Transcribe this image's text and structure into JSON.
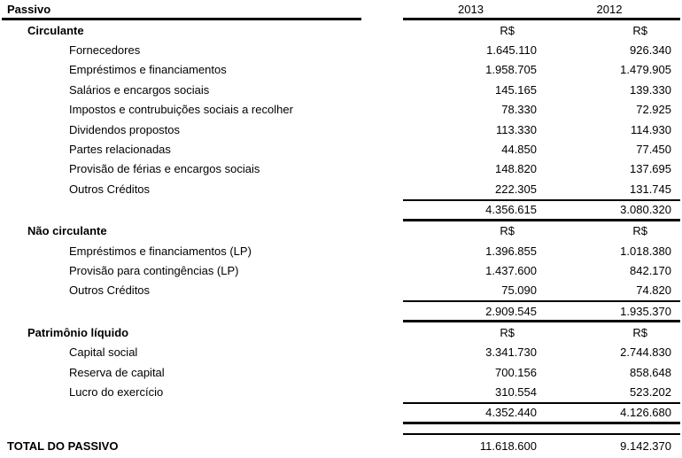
{
  "table": {
    "title": "Passivo",
    "col_headers": {
      "y2013": "2013",
      "y2012": "2012"
    },
    "currency_label": "R$",
    "sections": [
      {
        "name": "Circulante",
        "items": [
          {
            "label": "Fornecedores",
            "v2013": "1.645.110",
            "v2012": "926.340"
          },
          {
            "label": "Empréstimos e financiamentos",
            "v2013": "1.958.705",
            "v2012": "1.479.905"
          },
          {
            "label": "Salários e encargos sociais",
            "v2013": "145.165",
            "v2012": "139.330"
          },
          {
            "label": "Impostos e contrubuições sociais a recolher",
            "v2013": "78.330",
            "v2012": "72.925"
          },
          {
            "label": "Dividendos propostos",
            "v2013": "113.330",
            "v2012": "114.930"
          },
          {
            "label": "Partes relacionadas",
            "v2013": "44.850",
            "v2012": "77.450"
          },
          {
            "label": "Provisão de férias e encargos sociais",
            "v2013": "148.820",
            "v2012": "137.695"
          },
          {
            "label": "Outros Créditos",
            "v2013": "222.305",
            "v2012": "131.745"
          }
        ],
        "subtotal": {
          "v2013": "4.356.615",
          "v2012": "3.080.320"
        }
      },
      {
        "name": "Não circulante",
        "items": [
          {
            "label": "Empréstimos e financiamentos (LP)",
            "v2013": "1.396.855",
            "v2012": "1.018.380"
          },
          {
            "label": "Provisão para contingências (LP)",
            "v2013": "1.437.600",
            "v2012": "842.170"
          },
          {
            "label": "Outros Créditos",
            "v2013": "75.090",
            "v2012": "74.820"
          }
        ],
        "subtotal": {
          "v2013": "2.909.545",
          "v2012": "1.935.370"
        }
      },
      {
        "name": "Patrimônio líquido",
        "items": [
          {
            "label": "Capital social",
            "v2013": "3.341.730",
            "v2012": "2.744.830"
          },
          {
            "label": "Reserva de capital",
            "v2013": "700.156",
            "v2012": "858.648"
          },
          {
            "label": "Lucro do exercício",
            "v2013": "310.554",
            "v2012": "523.202"
          }
        ],
        "subtotal": {
          "v2013": "4.352.440",
          "v2012": "4.126.680"
        }
      }
    ],
    "total": {
      "label": "TOTAL DO PASSIVO",
      "v2013": "11.618.600",
      "v2012": "9.142.370"
    },
    "colors": {
      "text": "#000000",
      "background": "#ffffff",
      "rule": "#000000"
    }
  }
}
